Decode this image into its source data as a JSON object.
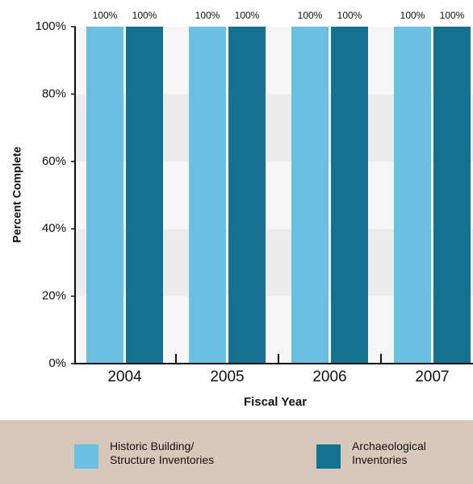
{
  "chart_data": {
    "type": "bar",
    "x_label": "Fiscal Year",
    "y_label": "Percent Complete",
    "categories": [
      "2004",
      "2005",
      "2006",
      "2007"
    ],
    "series": [
      {
        "name": "Historic Building/ Structure Inventories",
        "color": "#69c0e0",
        "values": [
          100,
          100,
          100,
          100
        ],
        "value_labels": [
          "100%",
          "100%",
          "100%",
          "100%"
        ]
      },
      {
        "name": "Archaeological Inventories",
        "color": "#14718f",
        "values": [
          100,
          100,
          100,
          100
        ],
        "value_labels": [
          "100%",
          "100%",
          "100%",
          "100%"
        ]
      }
    ],
    "ylim": [
      0,
      100
    ],
    "yticks": [
      {
        "value": 0,
        "label": "0%"
      },
      {
        "value": 20,
        "label": "20%"
      },
      {
        "value": 40,
        "label": "40%"
      },
      {
        "value": 60,
        "label": "60%"
      },
      {
        "value": 80,
        "label": "80%"
      },
      {
        "value": 100,
        "label": "100%"
      }
    ]
  }
}
